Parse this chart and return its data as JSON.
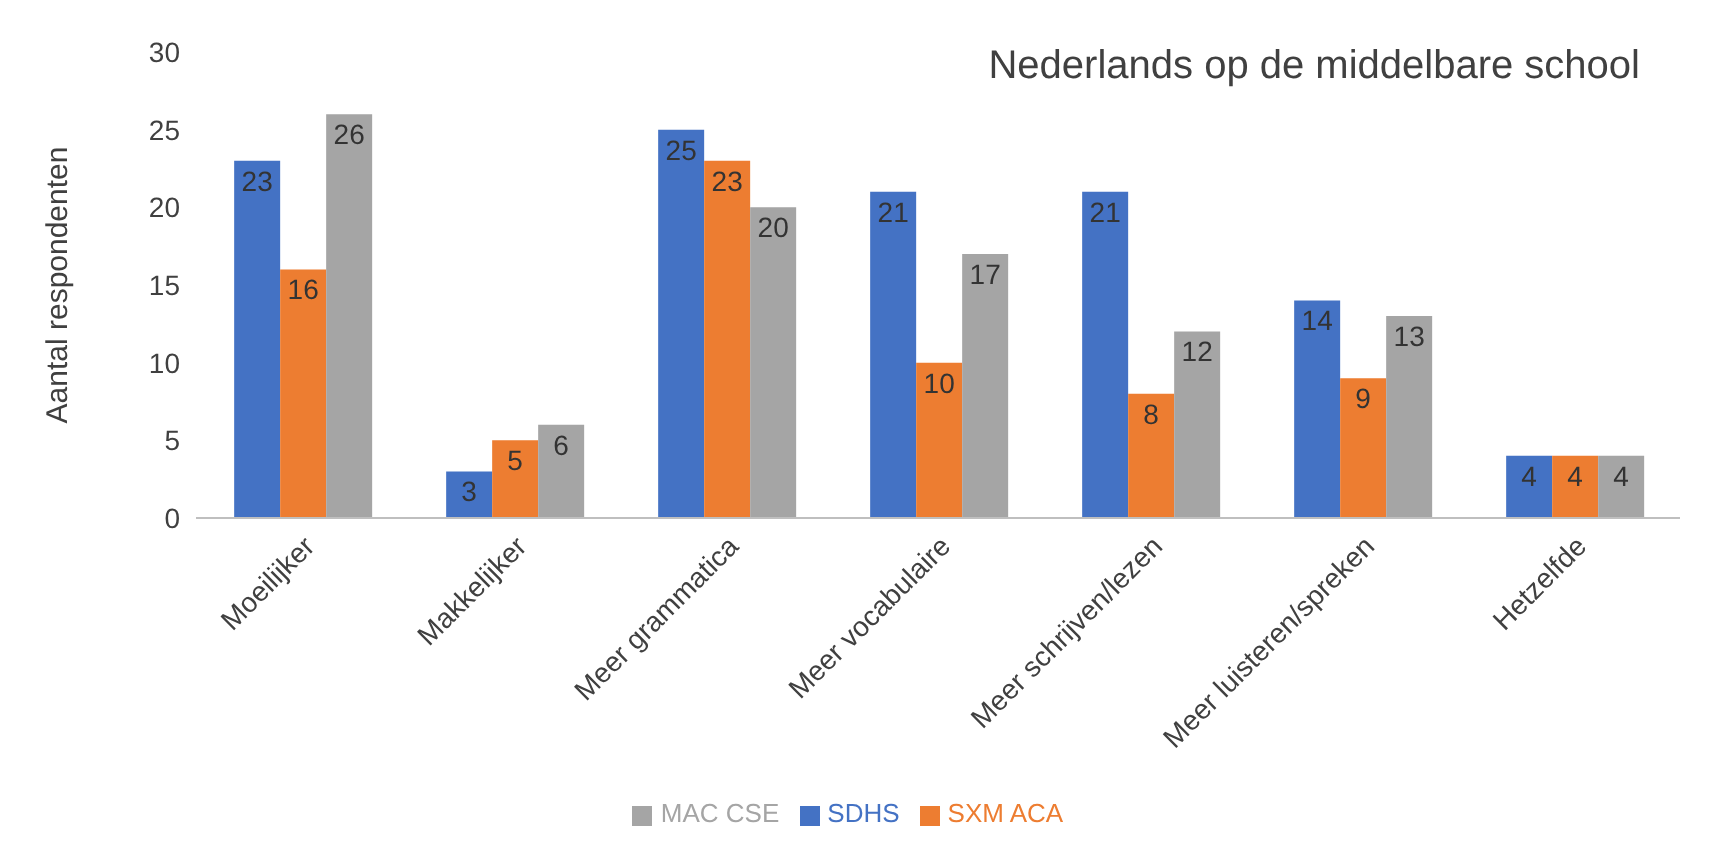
{
  "chart_data": {
    "type": "bar",
    "title": "Nederlands op de middelbare school",
    "ylabel": "Aantal respondenten",
    "categories": [
      "Moeilijker",
      "Makkelijker",
      "Meer grammatica",
      "Meer vocabulaire",
      "Meer schrijven/lezen",
      "Meer luisteren/spreken",
      "Hetzelfde"
    ],
    "series": [
      {
        "name": "SDHS",
        "color": "#4472c4",
        "values": [
          23,
          3,
          25,
          21,
          21,
          14,
          4
        ]
      },
      {
        "name": "SXM ACA",
        "color": "#ed7d31",
        "values": [
          16,
          5,
          23,
          10,
          8,
          9,
          4
        ]
      },
      {
        "name": "MAC CSE",
        "color": "#a5a5a5",
        "values": [
          26,
          6,
          20,
          17,
          12,
          13,
          4
        ]
      }
    ],
    "ylim": [
      0,
      30
    ],
    "yticks": [
      0,
      5,
      10,
      15,
      20,
      25,
      30
    ],
    "grid": false,
    "legend": "bottom",
    "data_labels": true
  }
}
